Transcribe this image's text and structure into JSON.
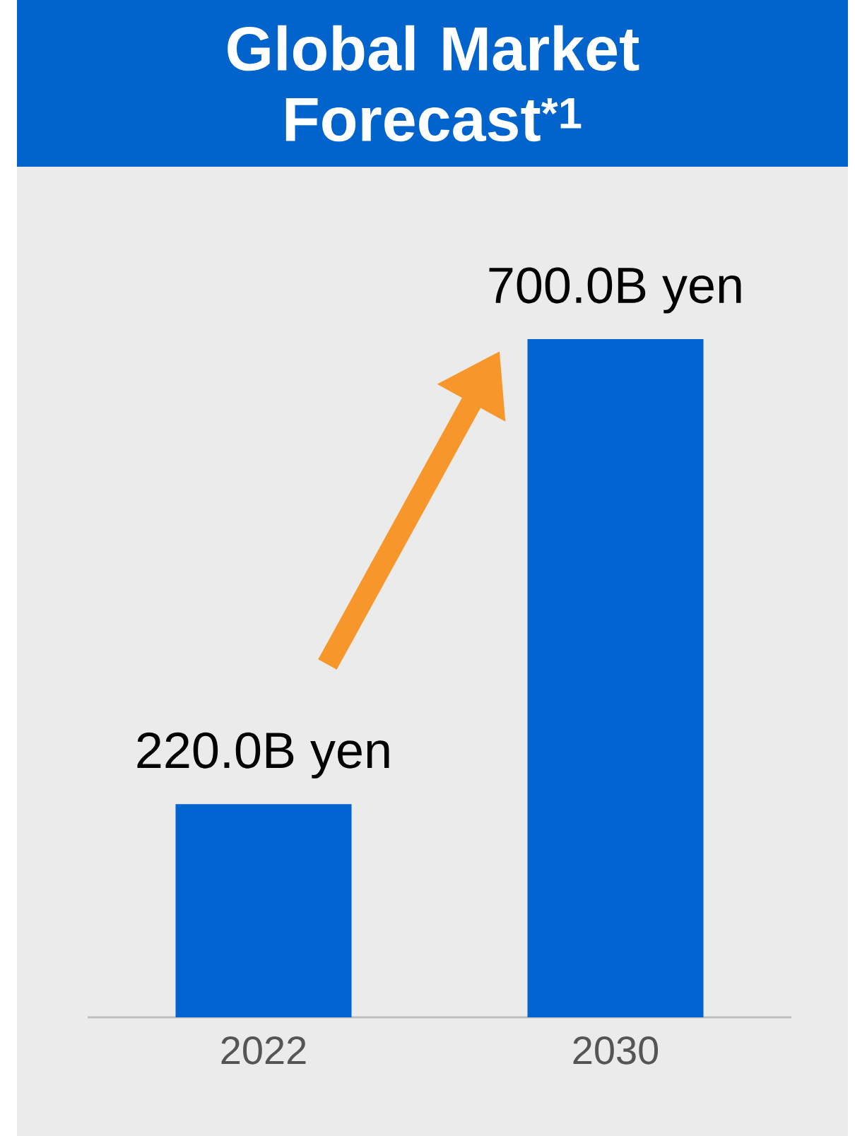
{
  "chart_data": {
    "type": "bar",
    "title": "Global Market Forecast$^{*1}$",
    "categories": [
      "2022",
      "2030"
    ],
    "values": [
      220.0,
      700.0
    ],
    "color": "#0064d2",
    "value_labels": [
      "220.0B yen",
      "700.0B yen"
    ]
  }
}
